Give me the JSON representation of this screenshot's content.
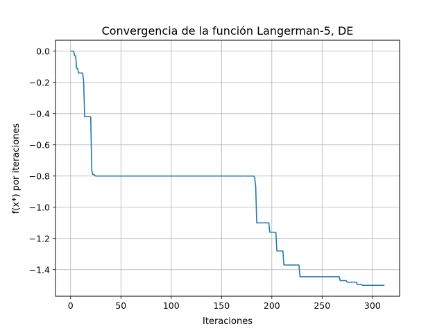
{
  "chart_data": {
    "type": "line",
    "title": "Convergencia de la función Langerman-5, DE",
    "xlabel": "Iteraciones",
    "ylabel": "f(x*) por iteraciones",
    "xlim": [
      -15,
      327
    ],
    "ylim": [
      -1.57,
      0.07
    ],
    "xticks": [
      0,
      50,
      100,
      150,
      200,
      250,
      300
    ],
    "xtick_labels": [
      "0",
      "50",
      "100",
      "150",
      "200",
      "250",
      "300"
    ],
    "yticks": [
      0.0,
      -0.2,
      -0.4,
      -0.6,
      -0.8,
      -1.0,
      -1.2,
      -1.4
    ],
    "ytick_labels": [
      "0.0",
      "−0.2",
      "−0.4",
      "−0.6",
      "−0.8",
      "−1.0",
      "−1.2",
      "−1.4"
    ],
    "grid": true,
    "series": [
      {
        "color": "#1f77b4",
        "x": [
          0,
          3,
          4,
          5,
          6,
          7,
          8,
          9,
          12,
          13,
          14,
          15,
          20,
          21,
          22,
          23,
          25,
          182,
          183,
          184,
          185,
          197,
          198,
          204,
          205,
          211,
          212,
          227,
          228,
          267,
          268,
          274,
          275,
          284,
          285,
          289,
          290,
          312
        ],
        "y": [
          0.0,
          0.0,
          -0.03,
          -0.03,
          -0.11,
          -0.11,
          -0.14,
          -0.14,
          -0.14,
          -0.2,
          -0.42,
          -0.42,
          -0.42,
          -0.76,
          -0.79,
          -0.79,
          -0.8,
          -0.8,
          -0.81,
          -0.87,
          -1.1,
          -1.1,
          -1.16,
          -1.16,
          -1.28,
          -1.28,
          -1.37,
          -1.37,
          -1.445,
          -1.445,
          -1.47,
          -1.47,
          -1.48,
          -1.48,
          -1.495,
          -1.495,
          -1.5,
          -1.5
        ]
      }
    ]
  }
}
